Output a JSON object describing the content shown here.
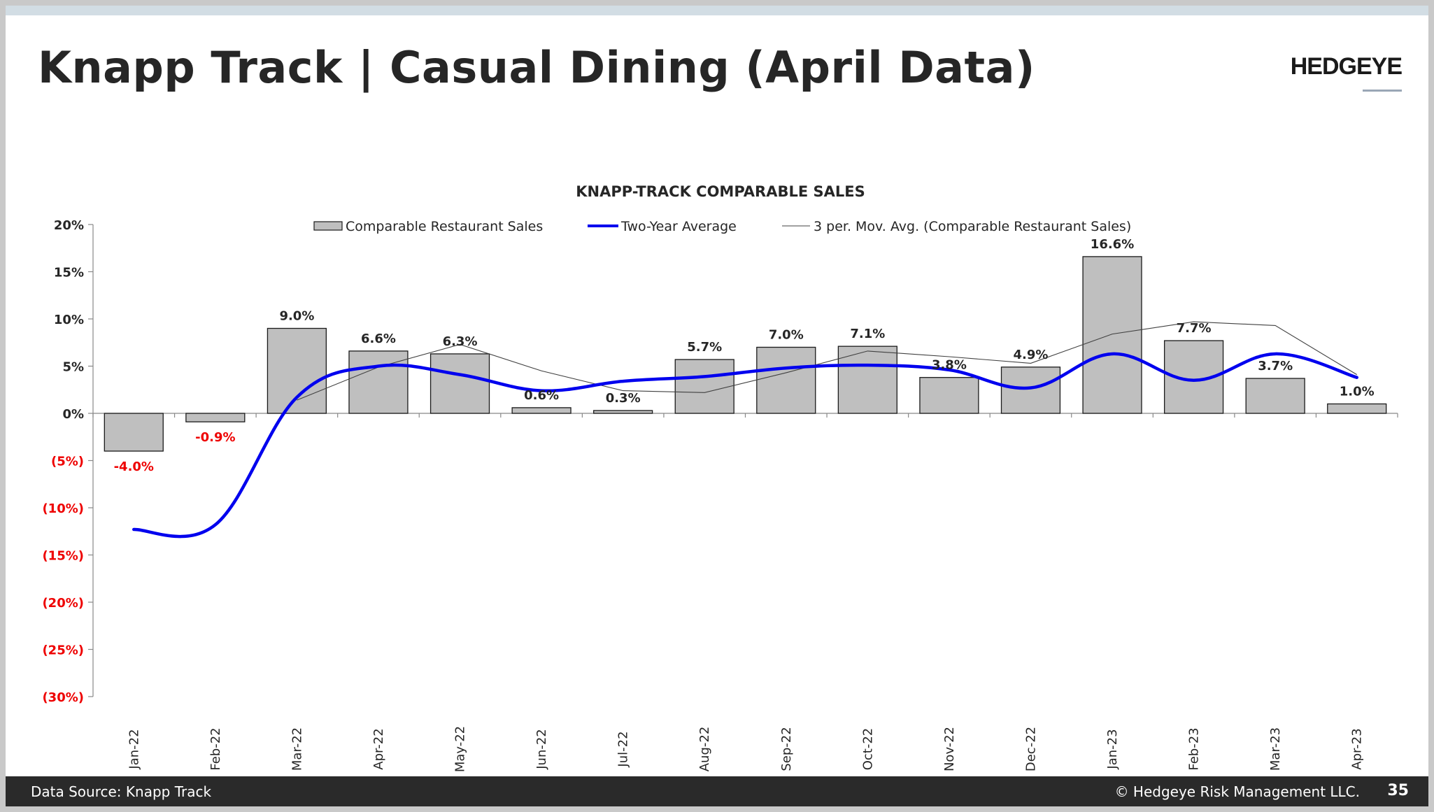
{
  "slide": {
    "title": "Knapp Track | Casual Dining (April Data)",
    "logo": "HEDGEYE",
    "footer_source": "Data Source: Knapp Track",
    "footer_copyright": "© Hedgeye Risk Management LLC.",
    "page_number": "35"
  },
  "colors": {
    "bar_fill": "#bfbfbf",
    "bar_stroke": "#1a1a1a",
    "two_year_avg": "#0000ee",
    "mov_avg": "#404040",
    "negative_label": "#ee0000",
    "axis": "#888888"
  },
  "chart_data": {
    "type": "bar",
    "title": "KNAPP-TRACK COMPARABLE SALES",
    "categories": [
      "Jan-22",
      "Feb-22",
      "Mar-22",
      "Apr-22",
      "May-22",
      "Jun-22",
      "Jul-22",
      "Aug-22",
      "Sep-22",
      "Oct-22",
      "Nov-22",
      "Dec-22",
      "Jan-23",
      "Feb-23",
      "Mar-23",
      "Apr-23"
    ],
    "ylim": [
      -30,
      20
    ],
    "yticks": [
      20,
      15,
      10,
      5,
      0,
      -5,
      -10,
      -15,
      -20,
      -25,
      -30
    ],
    "ytick_labels": [
      "20%",
      "15%",
      "10%",
      "5%",
      "0%",
      "(5%)",
      "(10%)",
      "(15%)",
      "(20%)",
      "(25%)",
      "(30%)"
    ],
    "legend_position": "top",
    "grid": false,
    "series": [
      {
        "name": "Comparable Restaurant Sales",
        "type": "bar",
        "values": [
          -4.0,
          -0.9,
          9.0,
          6.6,
          6.3,
          0.6,
          0.3,
          5.7,
          7.0,
          7.1,
          3.8,
          4.9,
          16.6,
          7.7,
          3.7,
          1.0
        ],
        "labels": [
          "-4.0%",
          "-0.9%",
          "9.0%",
          "6.6%",
          "6.3%",
          "0.6%",
          "0.3%",
          "5.7%",
          "7.0%",
          "7.1%",
          "3.8%",
          "4.9%",
          "16.6%",
          "7.7%",
          "3.7%",
          "1.0%"
        ]
      },
      {
        "name": "Two-Year Average",
        "type": "line",
        "values": [
          -12.3,
          -11.8,
          1.7,
          5.0,
          4.1,
          2.4,
          3.4,
          3.9,
          4.8,
          5.1,
          4.6,
          2.7,
          6.3,
          3.5,
          6.3,
          3.8
        ]
      },
      {
        "name": "3 per. Mov. Avg. (Comparable Restaurant Sales)",
        "type": "line",
        "values": [
          null,
          null,
          1.4,
          4.9,
          7.3,
          4.5,
          2.4,
          2.2,
          4.3,
          6.6,
          6.0,
          5.3,
          8.4,
          9.7,
          9.3,
          4.1
        ]
      }
    ]
  }
}
